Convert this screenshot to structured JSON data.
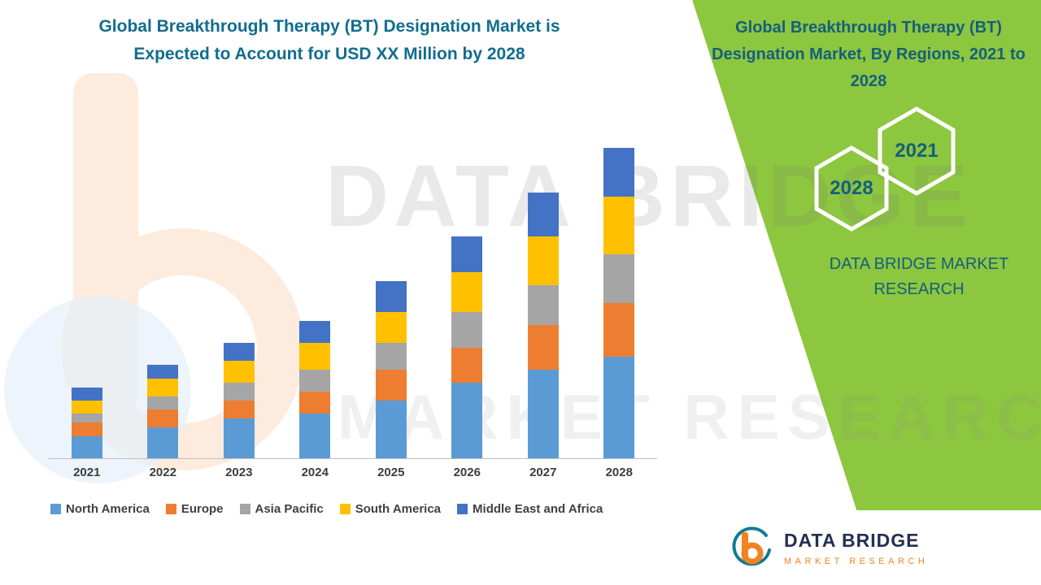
{
  "colors": {
    "teal": "#116d8f",
    "dark_teal": "#14607c",
    "green": "#8dc63f",
    "orange": "#f58220",
    "navy": "#23304f",
    "axis": "#bfbfbf"
  },
  "left_title": {
    "line1": "Global Breakthrough Therapy (BT) Designation Market is",
    "line2": "Expected to Account for USD XX Million by 2028"
  },
  "right_panel": {
    "title": "Global Breakthrough Therapy (BT) Designation Market, By Regions, 2021 to 2028",
    "hexagon_front": "2028",
    "hexagon_back": "2021",
    "brand_line1": "DATA BRIDGE MARKET",
    "brand_line2": "RESEARCH"
  },
  "watermark": {
    "line1": "DATA BRIDGE",
    "line2": "MARKET RESEARCH"
  },
  "logo_card": {
    "name": "DATA BRIDGE",
    "tagline": "MARKET RESEARCH"
  },
  "chart_data": {
    "type": "bar",
    "stacked": true,
    "title": "",
    "xlabel": "",
    "ylabel": "",
    "grid": false,
    "legend_position": "bottom",
    "categories": [
      "2021",
      "2022",
      "2023",
      "2024",
      "2025",
      "2026",
      "2027",
      "2028"
    ],
    "series": [
      {
        "name": "North America",
        "color": "#5B9BD5",
        "values": [
          5,
          7,
          9,
          10,
          13,
          17,
          20,
          23
        ]
      },
      {
        "name": "Europe",
        "color": "#ED7D31",
        "values": [
          3,
          4,
          4,
          5,
          7,
          8,
          10,
          12
        ]
      },
      {
        "name": "Asia Pacific",
        "color": "#A5A5A5",
        "values": [
          2,
          3,
          4,
          5,
          6,
          8,
          9,
          11
        ]
      },
      {
        "name": "South America",
        "color": "#FFC000",
        "values": [
          3,
          4,
          5,
          6,
          7,
          9,
          11,
          13
        ]
      },
      {
        "name": "Middle East and Africa",
        "color": "#4472C4",
        "values": [
          3,
          3,
          4,
          5,
          7,
          8,
          10,
          11
        ]
      }
    ],
    "ylim": [
      0,
      75
    ],
    "y_units": "relative index (no axis labels shown; values estimated from bar heights)"
  }
}
